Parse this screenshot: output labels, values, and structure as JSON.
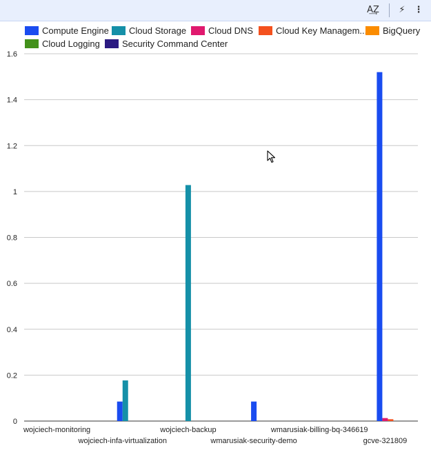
{
  "toolbar": {
    "sort_icon": "sort-az-icon",
    "sort_label": "A͢Z",
    "explore_icon": "lightning-icon",
    "explore_label": "⚡",
    "more_icon": "more-vert-icon",
    "more_label": "⋮"
  },
  "chart_data": {
    "type": "bar",
    "title": "",
    "xlabel": "",
    "ylabel": "",
    "ylim": [
      0,
      1.6
    ],
    "yticks": [
      0,
      0.2,
      0.4,
      0.6,
      0.8,
      1,
      1.2,
      1.4,
      1.6
    ],
    "ytick_labels": [
      "0",
      "0.2",
      "0.4",
      "0.6",
      "0.8",
      "1",
      "1.2",
      "1.4",
      "1.6"
    ],
    "grid": true,
    "legend_position": "top",
    "categories": [
      "wojciech-monitoring",
      "wojciech-infa-virtualization",
      "wojciech-backup",
      "wmarusiak-security-demo",
      "wmarusiak-billing-bq-346619",
      "gcve-321809"
    ],
    "series": [
      {
        "name": "Compute Engine",
        "legend_label": "Compute Engine",
        "color": "#1a4cf0",
        "values": [
          0,
          0.085,
          0,
          0.085,
          0,
          1.52
        ]
      },
      {
        "name": "Cloud Storage",
        "legend_label": "Cloud Storage",
        "color": "#1590a8",
        "values": [
          0,
          0.177,
          1.028,
          0,
          0,
          0
        ]
      },
      {
        "name": "Cloud DNS",
        "legend_label": "Cloud DNS",
        "color": "#e0196e",
        "values": [
          0,
          0,
          0,
          0,
          0,
          0.013
        ]
      },
      {
        "name": "Cloud Key Management",
        "legend_label": "Cloud Key Managem...",
        "color": "#f4511e",
        "values": [
          0,
          0,
          0,
          0,
          0,
          0.008
        ]
      },
      {
        "name": "BigQuery",
        "legend_label": "BigQuery",
        "color": "#fb8c00",
        "values": [
          0,
          0,
          0,
          0,
          0,
          0
        ]
      },
      {
        "name": "Cloud Logging",
        "legend_label": "Cloud Logging",
        "color": "#43911b",
        "values": [
          0,
          0,
          0,
          0,
          0,
          0
        ]
      },
      {
        "name": "Security Command Center",
        "legend_label": "Security Command Center",
        "color": "#2b1a82",
        "values": [
          0,
          0,
          0,
          0,
          0,
          0
        ]
      }
    ]
  }
}
